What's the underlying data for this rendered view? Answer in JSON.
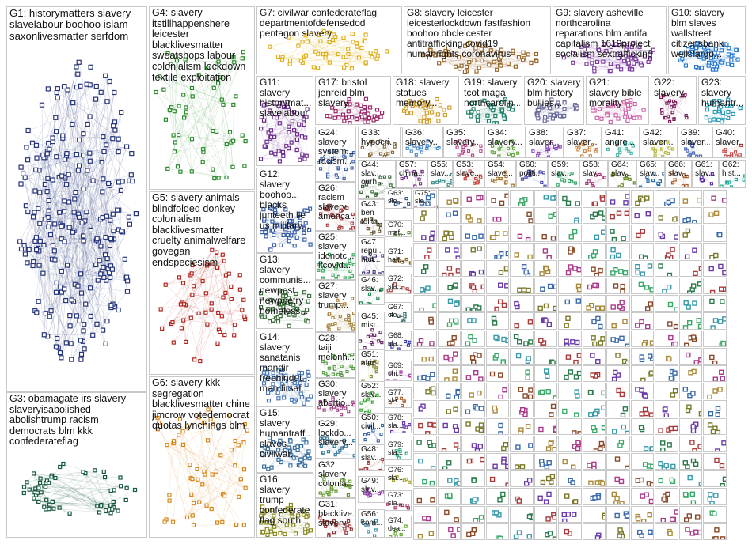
{
  "groups": {
    "G1": "G1: historymatters slavery\nslavelabour boohoo islam\nsaxonlivesmatter serfdom",
    "G3": "G3: obamagate irs slavery\nslaveryisabolished\nabolishtrump racism\ndemocrats blm kkk\nconfederateflag",
    "G4": "G4: slavery\nitstillhappenshere\nleicester\nblacklivesmatter\nsweatshops labour\ncolonialism lockdown\ntextile exploitation",
    "G5": "G5: slavery animals\nblindfolded donkey\ncolonialism\nblacklivesmatter\ncruelty animalwelfare\ngovegan\nendspeciesism",
    "G6": "G6: slavery kkk\nsegregation\nblacklivesmatter chine\njimcrow votedemocrat\nquotas lynchings blm",
    "G7": "G7: civilwar confederateflag\ndepartmentofdefensedod\npentagon slavery",
    "G8": "G8: slavery leicester\nleicesterlockdown fastfashion\nboohoo bbcleicester\nantitrafficking covid19\nhumanrights coronavirus",
    "G9": "G9: slavery asheville\nnorthcarolina\nreparations blm antifa\ncapitalism 1619project\nsocialism sextrafficking",
    "G10": "G10: slavery\nblm slaves\nwallstreet\ncitizensbank\nwellsfargo...",
    "G11": "G11:\nslavery\nhistorymat...\nslavelabour",
    "G12": "G12:\nslavery\nboohoo...\nblacks\njunteeth lie\nus military...",
    "G13": "G13:\nslavery\ncommunis...\nnewpost\nnewpoetry\nhomeless...",
    "G14": "G14:\nslavery\nsanatanis\nmandir\nfreehindut...\nmandirsat...",
    "G15": "G15:\nslavery\nhumantraff...\nslaves\ncivilwar...",
    "G16": "G16:\nslavery\ntrump\nconfederate\nflag south...",
    "G17": "G17: bristol\njenreid blm\nslavery",
    "G18": "G18: slavery\nstatues\nmemory...",
    "G19": "G19: slavery\ntcot maga\nnorthcarolin...",
    "G20": "G20: slavery\nblm history\nbullies...",
    "G21": "G21:\nslavery bible\nmorality",
    "G22": "G22:\nslavery",
    "G23": "G23:\nslavery\nhumantr...",
    "G24": "G24:\nslavery\nsystem...\nracism...",
    "G26": "G26:\nracism\nslavery\namerica...",
    "G25": "G25:\nslavery\nidonotc...\nifcovid...",
    "G27": "G27:\nslavery\ntrump...",
    "G28": "G28:\ntaiji\nmelonh...",
    "G30": "G30:\nslavery\nabortio...",
    "G29": "G29:\nlockdo...\nslavery...",
    "G32": "G32:\nslavery\ncolonia...",
    "G31": "G31:\nblacklive...\nslavery",
    "G33": "G33:\nhypocri...",
    "G36": "G36:\nslavery...",
    "G35": "G35:\nslavery...",
    "G34": "G34:\nslavery...",
    "G38": "G38:\nslaver...",
    "G37": "G37:\nslaver...",
    "G41": "G41:\nangre...",
    "G42": "G42:\nslaver...",
    "G39": "G39:\nslaver...",
    "G40": "G40:\nslaver...",
    "G44": "G44:\nslav...\nourh...",
    "G57": "G57:\nchina...",
    "G55": "G55:\nslav...",
    "G53": "G53:\nslave...",
    "G54": "G54:\nslave...",
    "G60": "G60:\npoliti...",
    "G59": "G59:\nslav...",
    "G58": "G58:\nslav...",
    "G64": "G64:\nslav...",
    "G65": "G65:\nslav...",
    "G66": "G66:\nslav...",
    "G61": "G61:\nslav...",
    "G62": "G62:\nhist...",
    "G43": "G43:\nben\ntellth...",
    "G63": "G63:\nsle...",
    "G75": "G75:\nsle...",
    "G70": "G70:\nmaf...",
    "G47": "G47\nrepu...\nhait...",
    "G71": "G71:\nhait...",
    "G46": "G46:\nslav...",
    "G72": "G72:\nsla...",
    "G45": "G45:\nmist...",
    "G67": "G67:\nclo...",
    "G51": "G51:\nafric...",
    "G68": "G68:\nsla...",
    "G69": "G69:\nchi...",
    "G52": "G52:\nslav...",
    "G77": "G77:\nsla...",
    "G50": "G50:\ncivil...",
    "G78": "G78:\nsla...",
    "G48": "G48:\nslav...",
    "G79": "G79:\nsla...",
    "G49": "G49:\nslav...",
    "G76": "G76:\nsla...",
    "G56": "G56:\ncom...",
    "G73": "G73:\nsla...",
    "G74": "G74:\ndea..."
  }
}
